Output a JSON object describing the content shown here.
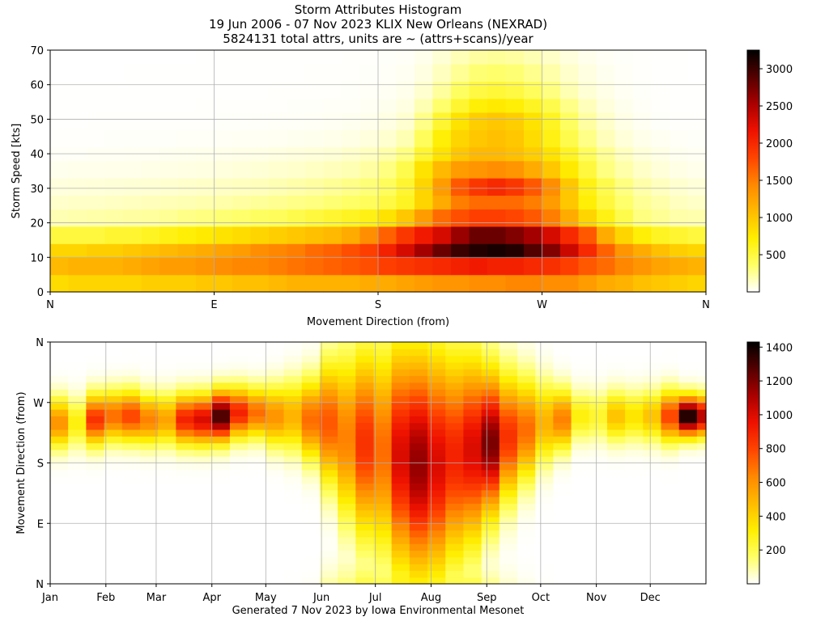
{
  "titles": {
    "line1": "Storm Attributes Histogram",
    "line2": "19 Jun 2006 - 07 Nov 2023 KLIX New Orleans (NEXRAD)",
    "line3": "5824131 total attrs, units are ~ (attrs+scans)/year"
  },
  "footer": "Generated 7 Nov 2023 by Iowa Environmental Mesonet",
  "colormap": [
    "#ffffff",
    "#ffff66",
    "#ffee00",
    "#ffbb00",
    "#ff8800",
    "#ff4400",
    "#ee1100",
    "#aa0000",
    "#550000",
    "#000000"
  ],
  "chart_data": [
    {
      "type": "heatmap",
      "name": "speed-vs-direction",
      "xlabel": "Movement Direction (from)",
      "ylabel": "Storm Speed [kts]",
      "x_ticks": [
        "N",
        "E",
        "S",
        "W",
        "N"
      ],
      "y_ticks": [
        "0",
        "10",
        "20",
        "30",
        "40",
        "50",
        "60",
        "70"
      ],
      "xlim": [
        0,
        360
      ],
      "ylim": [
        0,
        70
      ],
      "x_bin_deg": 10,
      "y_bins_kts": [
        0,
        5,
        10,
        14,
        19,
        24,
        28,
        33,
        38,
        42,
        47,
        52,
        56,
        61,
        66,
        70
      ],
      "colorbar": {
        "min": 0,
        "max": 3250,
        "ticks": [
          "500",
          "1000",
          "1500",
          "2000",
          "2500",
          "3000"
        ]
      },
      "grid": true,
      "values": [
        [
          850,
          900,
          900,
          900,
          900,
          950,
          950,
          950,
          1000,
          1000,
          1050,
          1050,
          1100,
          1150,
          1150,
          1150,
          1150,
          1200,
          1200,
          1250,
          1300,
          1350,
          1350,
          1400,
          1400,
          1450,
          1450,
          1400,
          1400,
          1300,
          1200,
          1150,
          1050,
          1000,
          950,
          900
        ],
        [
          1100,
          1150,
          1150,
          1150,
          1200,
          1250,
          1300,
          1300,
          1350,
          1400,
          1450,
          1450,
          1500,
          1550,
          1600,
          1650,
          1700,
          1750,
          1850,
          1900,
          1950,
          2000,
          2050,
          2100,
          2050,
          2050,
          2000,
          1950,
          1850,
          1700,
          1600,
          1450,
          1350,
          1250,
          1200,
          1150
        ],
        [
          900,
          900,
          950,
          950,
          1000,
          1050,
          1100,
          1150,
          1200,
          1250,
          1300,
          1400,
          1450,
          1500,
          1600,
          1650,
          1750,
          1850,
          2050,
          2300,
          2550,
          2800,
          3000,
          3100,
          3150,
          3100,
          2900,
          2700,
          2350,
          2000,
          1650,
          1350,
          1200,
          1050,
          950,
          900
        ],
        [
          500,
          500,
          500,
          550,
          550,
          600,
          650,
          700,
          750,
          800,
          850,
          900,
          950,
          1000,
          1050,
          1100,
          1200,
          1400,
          1650,
          1900,
          2100,
          2300,
          2600,
          2800,
          2800,
          2700,
          2550,
          2300,
          2000,
          1700,
          1200,
          900,
          700,
          600,
          550,
          500
        ],
        [
          180,
          190,
          200,
          210,
          220,
          230,
          250,
          280,
          300,
          330,
          350,
          380,
          400,
          450,
          500,
          550,
          600,
          650,
          800,
          1000,
          1300,
          1600,
          1750,
          1850,
          1850,
          1800,
          1700,
          1500,
          1200,
          900,
          650,
          450,
          300,
          250,
          200,
          190
        ],
        [
          120,
          130,
          130,
          140,
          150,
          160,
          170,
          180,
          190,
          200,
          220,
          240,
          260,
          280,
          300,
          330,
          360,
          400,
          480,
          600,
          900,
          1200,
          1500,
          1600,
          1600,
          1600,
          1500,
          1300,
          1000,
          700,
          500,
          350,
          250,
          200,
          150,
          130
        ],
        [
          80,
          85,
          90,
          95,
          100,
          105,
          110,
          120,
          130,
          140,
          150,
          160,
          180,
          200,
          220,
          250,
          280,
          320,
          400,
          550,
          900,
          1300,
          1700,
          1900,
          2000,
          1900,
          1700,
          1400,
          1000,
          650,
          450,
          300,
          200,
          150,
          110,
          90
        ],
        [
          40,
          45,
          45,
          50,
          50,
          55,
          60,
          65,
          70,
          80,
          90,
          100,
          110,
          120,
          140,
          160,
          180,
          220,
          300,
          450,
          800,
          1100,
          1300,
          1350,
          1400,
          1350,
          1200,
          1000,
          750,
          500,
          300,
          200,
          130,
          90,
          60,
          45
        ],
        [
          20,
          20,
          25,
          25,
          30,
          30,
          35,
          40,
          45,
          50,
          55,
          60,
          70,
          80,
          90,
          100,
          120,
          150,
          200,
          300,
          550,
          800,
          1000,
          1100,
          1100,
          1050,
          950,
          800,
          600,
          400,
          250,
          150,
          90,
          60,
          35,
          25
        ],
        [
          10,
          10,
          10,
          12,
          12,
          14,
          15,
          18,
          20,
          22,
          25,
          28,
          30,
          35,
          40,
          50,
          60,
          80,
          110,
          180,
          400,
          700,
          900,
          1000,
          1050,
          1000,
          850,
          650,
          450,
          280,
          160,
          90,
          50,
          30,
          18,
          12
        ],
        [
          5,
          5,
          6,
          6,
          7,
          7,
          8,
          9,
          10,
          11,
          12,
          14,
          16,
          18,
          22,
          28,
          35,
          45,
          65,
          110,
          280,
          550,
          800,
          950,
          1000,
          950,
          800,
          600,
          380,
          220,
          120,
          60,
          30,
          15,
          8,
          6
        ],
        [
          3,
          3,
          3,
          4,
          4,
          4,
          5,
          5,
          6,
          6,
          7,
          8,
          9,
          11,
          13,
          16,
          20,
          28,
          40,
          70,
          180,
          350,
          550,
          700,
          750,
          700,
          600,
          450,
          280,
          160,
          80,
          40,
          20,
          10,
          5,
          3
        ],
        [
          2,
          2,
          2,
          2,
          3,
          3,
          3,
          3,
          4,
          4,
          5,
          5,
          6,
          7,
          8,
          10,
          13,
          18,
          25,
          45,
          110,
          230,
          380,
          480,
          520,
          480,
          400,
          300,
          180,
          100,
          55,
          28,
          14,
          7,
          4,
          2
        ],
        [
          1,
          1,
          1,
          1,
          2,
          2,
          2,
          2,
          3,
          3,
          3,
          4,
          4,
          5,
          6,
          7,
          9,
          12,
          17,
          30,
          70,
          150,
          250,
          330,
          350,
          330,
          270,
          200,
          120,
          70,
          35,
          18,
          9,
          5,
          3,
          1
        ],
        [
          1,
          1,
          1,
          1,
          1,
          1,
          1,
          1,
          2,
          2,
          2,
          2,
          3,
          3,
          4,
          5,
          6,
          8,
          12,
          20,
          45,
          100,
          170,
          220,
          240,
          220,
          180,
          130,
          80,
          45,
          22,
          12,
          6,
          3,
          2,
          1
        ]
      ]
    },
    {
      "type": "heatmap",
      "name": "direction-vs-day-of-year",
      "xlabel": "",
      "ylabel": "Movement Direction (from)",
      "x_ticks": [
        "Jan",
        "Feb",
        "Mar",
        "Apr",
        "May",
        "Jun",
        "Jul",
        "Aug",
        "Sep",
        "Oct",
        "Nov",
        "Dec"
      ],
      "y_ticks": [
        "N",
        "E",
        "S",
        "W",
        "N"
      ],
      "xlim_days": [
        0,
        365
      ],
      "ylim_deg": [
        0,
        360
      ],
      "x_bin_days": 10,
      "y_bin_deg": 10,
      "colorbar": {
        "min": 0,
        "max": 1430,
        "ticks": [
          "200",
          "400",
          "600",
          "800",
          "1000",
          "1200",
          "1400"
        ]
      },
      "grid": true,
      "profiles": {
        "description_free": true,
        "peak_direction_deg": [
          240,
          240,
          245,
          250,
          250,
          245,
          245,
          245,
          245,
          250,
          255,
          255,
          250,
          250,
          245,
          240,
          220,
          210,
          200,
          190,
          180,
          180,
          190,
          200,
          210,
          220,
          230,
          240,
          245,
          250,
          250,
          250,
          250,
          250,
          250,
          250,
          250
        ],
        "peak_value": [
          600,
          300,
          850,
          700,
          800,
          650,
          550,
          900,
          1000,
          1300,
          900,
          700,
          600,
          500,
          700,
          750,
          650,
          850,
          700,
          1000,
          1150,
          1000,
          900,
          1000,
          1200,
          850,
          700,
          500,
          650,
          300,
          250,
          450,
          350,
          450,
          800,
          1400,
          1100
        ],
        "spread_deg": [
          25,
          25,
          25,
          25,
          25,
          25,
          25,
          25,
          25,
          25,
          25,
          25,
          30,
          35,
          40,
          60,
          80,
          90,
          100,
          110,
          110,
          110,
          100,
          90,
          70,
          60,
          50,
          40,
          30,
          25,
          25,
          25,
          25,
          25,
          25,
          20,
          20
        ]
      }
    }
  ]
}
